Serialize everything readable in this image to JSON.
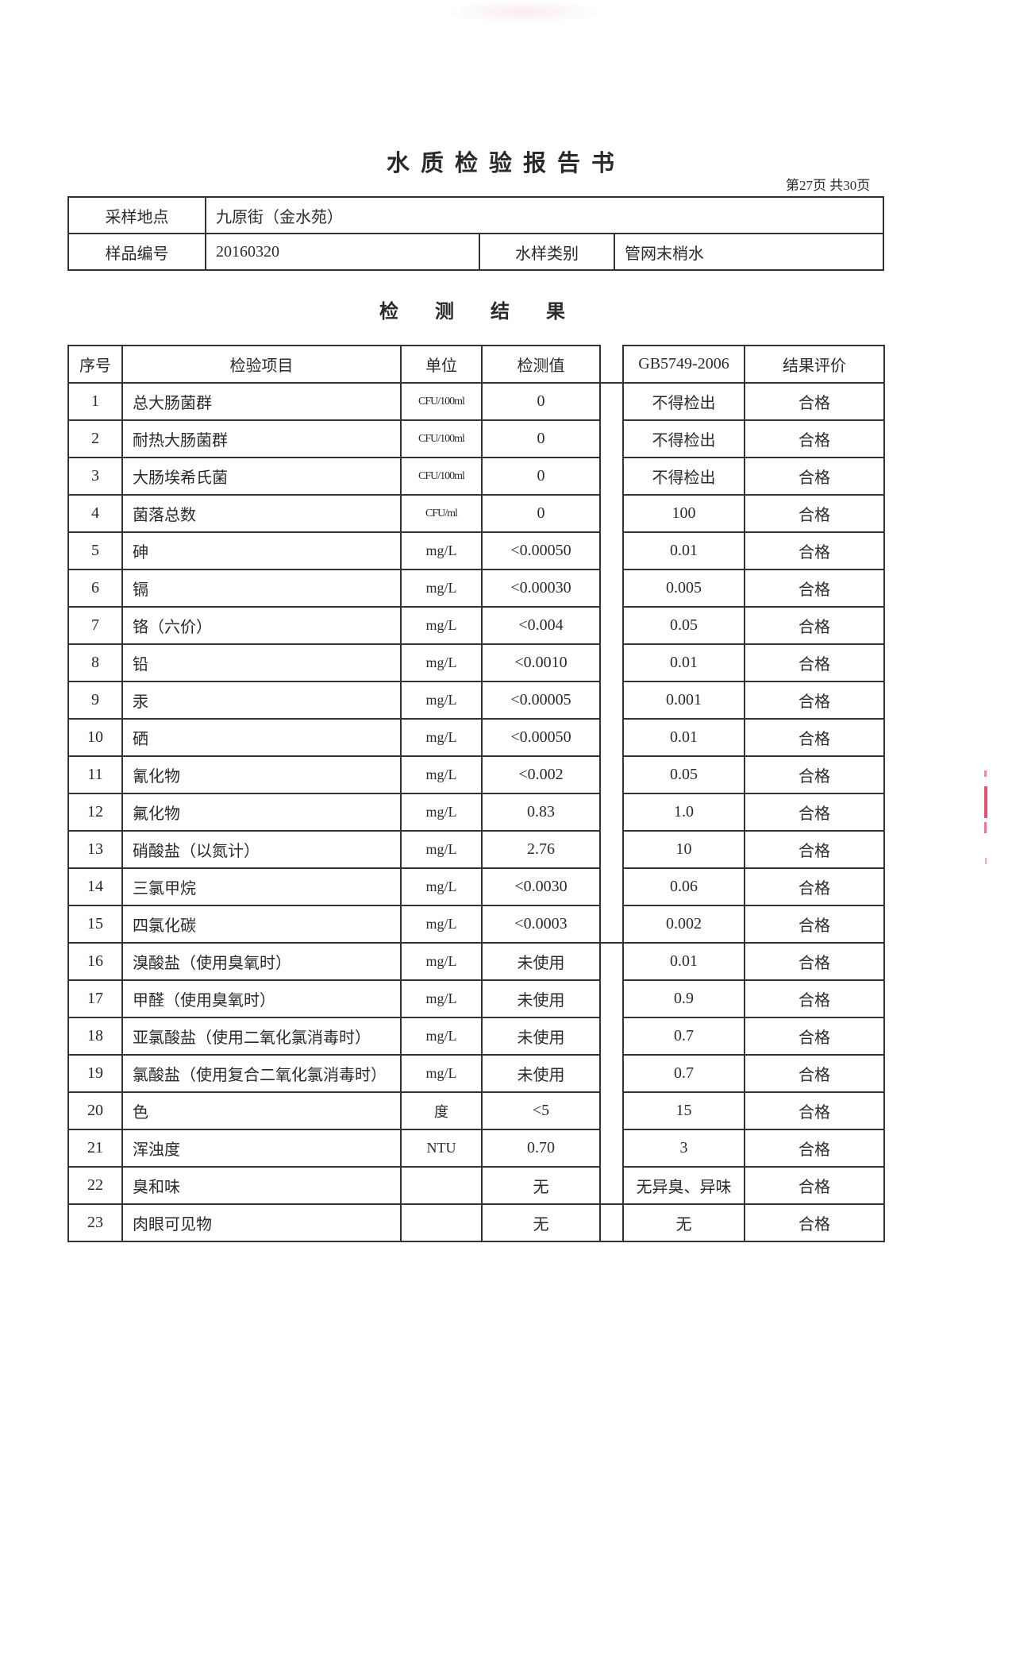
{
  "header": {
    "title": "水质检验报告书",
    "page_info": "第27页 共30页"
  },
  "sample_info": {
    "location_label": "采样地点",
    "location_value": "九原街（金水苑）",
    "sample_no_label": "样品编号",
    "sample_no_value": "20160320",
    "sample_type_label": "水样类别",
    "sample_type_value": "管网末梢水"
  },
  "results": {
    "title": "检 测 结 果",
    "columns": [
      "序号",
      "检验项目",
      "单位",
      "检测值",
      "GB5749-2006",
      "结果评价"
    ],
    "rows": [
      [
        "1",
        "总大肠菌群",
        "CFU/100ml",
        "0",
        "不得检出",
        "合格"
      ],
      [
        "2",
        "耐热大肠菌群",
        "CFU/100ml",
        "0",
        "不得检出",
        "合格"
      ],
      [
        "3",
        "大肠埃希氏菌",
        "CFU/100ml",
        "0",
        "不得检出",
        "合格"
      ],
      [
        "4",
        "菌落总数",
        "CFU/ml",
        "0",
        "100",
        "合格"
      ],
      [
        "5",
        "砷",
        "mg/L",
        "<0.00050",
        "0.01",
        "合格"
      ],
      [
        "6",
        "镉",
        "mg/L",
        "<0.00030",
        "0.005",
        "合格"
      ],
      [
        "7",
        "铬（六价）",
        "mg/L",
        "<0.004",
        "0.05",
        "合格"
      ],
      [
        "8",
        "铅",
        "mg/L",
        "<0.0010",
        "0.01",
        "合格"
      ],
      [
        "9",
        "汞",
        "mg/L",
        "<0.00005",
        "0.001",
        "合格"
      ],
      [
        "10",
        "硒",
        "mg/L",
        "<0.00050",
        "0.01",
        "合格"
      ],
      [
        "11",
        "氰化物",
        "mg/L",
        "<0.002",
        "0.05",
        "合格"
      ],
      [
        "12",
        "氟化物",
        "mg/L",
        "0.83",
        "1.0",
        "合格"
      ],
      [
        "13",
        "硝酸盐（以氮计）",
        "mg/L",
        "2.76",
        "10",
        "合格"
      ],
      [
        "14",
        "三氯甲烷",
        "mg/L",
        "<0.0030",
        "0.06",
        "合格"
      ],
      [
        "15",
        "四氯化碳",
        "mg/L",
        "<0.0003",
        "0.002",
        "合格"
      ],
      [
        "16",
        "溴酸盐（使用臭氧时）",
        "mg/L",
        "未使用",
        "0.01",
        "合格"
      ],
      [
        "17",
        "甲醛（使用臭氧时）",
        "mg/L",
        "未使用",
        "0.9",
        "合格"
      ],
      [
        "18",
        "亚氯酸盐（使用二氧化氯消毒时）",
        "mg/L",
        "未使用",
        "0.7",
        "合格"
      ],
      [
        "19",
        "氯酸盐（使用复合二氧化氯消毒时）",
        "mg/L",
        "未使用",
        "0.7",
        "合格"
      ],
      [
        "20",
        "色",
        "度",
        "<5",
        "15",
        "合格"
      ],
      [
        "21",
        "浑浊度",
        "NTU",
        "0.70",
        "3",
        "合格"
      ],
      [
        "22",
        "臭和味",
        "",
        "无",
        "无异臭、异味",
        "合格"
      ],
      [
        "23",
        "肉眼可见物",
        "",
        "无",
        "无",
        "合格"
      ]
    ]
  },
  "colors": {
    "ink": "#2a2a2a",
    "stamp": "#e8506e"
  }
}
